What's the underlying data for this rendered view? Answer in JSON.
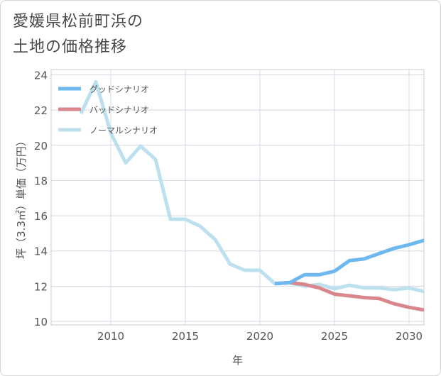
{
  "title_line1": "愛媛県松前町浜の",
  "title_line2": "土地の価格推移",
  "chart_data": {
    "type": "line",
    "xlabel": "年",
    "ylabel": "坪（3.3㎡）単価（万円）",
    "xlim": [
      2006,
      2031
    ],
    "ylim": [
      9.8,
      24.3
    ],
    "x_ticks": [
      2010,
      2015,
      2020,
      2025,
      2030
    ],
    "y_ticks": [
      10,
      12,
      14,
      16,
      18,
      20,
      22,
      24
    ],
    "grid": true,
    "legend_position": "top-left",
    "series": [
      {
        "name": "グッドシナリオ",
        "color": "#6cb8ef",
        "x": [
          2021,
          2022,
          2023,
          2024,
          2025,
          2026,
          2027,
          2028,
          2029,
          2030,
          2031
        ],
        "y": [
          12.15,
          12.2,
          12.65,
          12.65,
          12.85,
          13.45,
          13.55,
          13.85,
          14.15,
          14.35,
          14.6
        ]
      },
      {
        "name": "バッドシナリオ",
        "color": "#d9878c",
        "x": [
          2021,
          2022,
          2023,
          2024,
          2025,
          2026,
          2027,
          2028,
          2029,
          2030,
          2031
        ],
        "y": [
          12.15,
          12.2,
          12.1,
          11.9,
          11.55,
          11.45,
          11.35,
          11.3,
          11.0,
          10.8,
          10.65
        ]
      },
      {
        "name": "ノーマルシナリオ",
        "color": "#bde0ee",
        "x": [
          2008,
          2009,
          2010,
          2011,
          2012,
          2013,
          2014,
          2015,
          2016,
          2017,
          2018,
          2019,
          2020,
          2021,
          2022,
          2023,
          2024,
          2025,
          2026,
          2027,
          2028,
          2029,
          2030,
          2031
        ],
        "y": [
          21.8,
          23.6,
          20.7,
          19.0,
          19.95,
          19.2,
          15.8,
          15.8,
          15.4,
          14.65,
          13.25,
          12.9,
          12.9,
          12.15,
          12.2,
          12.0,
          12.1,
          11.85,
          12.05,
          11.9,
          11.9,
          11.8,
          11.9,
          11.7
        ]
      }
    ]
  }
}
